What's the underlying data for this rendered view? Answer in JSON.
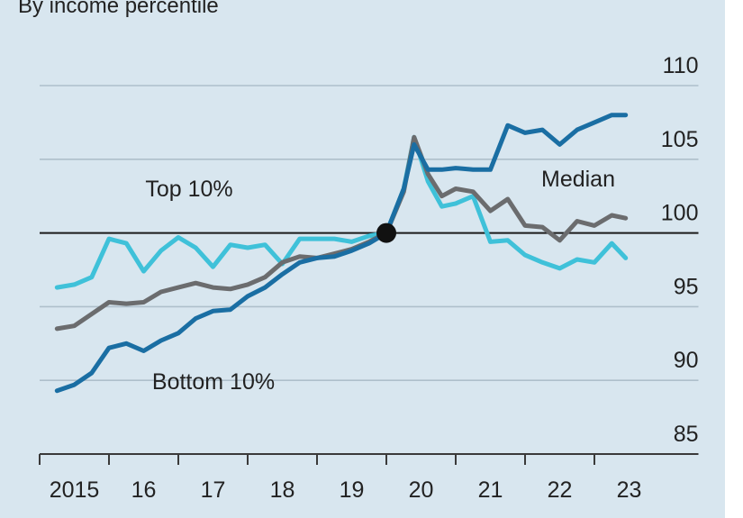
{
  "chart_data": {
    "type": "line",
    "subtitle": "By income percentile",
    "x": [
      2015.25,
      2015.5,
      2015.75,
      2016,
      2016.25,
      2016.5,
      2016.75,
      2017,
      2017.25,
      2017.5,
      2017.75,
      2018,
      2018.25,
      2018.5,
      2018.75,
      2019,
      2019.25,
      2019.5,
      2019.75,
      2020,
      2020.25,
      2020.4,
      2020.6,
      2020.8,
      2021,
      2021.25,
      2021.5,
      2021.75,
      2022,
      2022.25,
      2022.5,
      2022.75,
      2023,
      2023.25,
      2023.45
    ],
    "series": [
      {
        "name": "Top 10%",
        "color": "#3fc1d9",
        "values": [
          96.3,
          96.5,
          97,
          99.6,
          99.3,
          97.4,
          98.8,
          99.7,
          99,
          97.7,
          99.2,
          99,
          99.2,
          97.9,
          99.6,
          99.6,
          99.6,
          99.4,
          99.8,
          100,
          103,
          106.5,
          103.5,
          101.8,
          102,
          102.5,
          99.4,
          99.5,
          98.5,
          98,
          97.6,
          98.2,
          98,
          99.3,
          98.3
        ]
      },
      {
        "name": "Median",
        "color": "#6b6c6e",
        "values": [
          93.5,
          93.7,
          94.5,
          95.3,
          95.2,
          95.3,
          96,
          96.3,
          96.6,
          96.3,
          96.2,
          96.5,
          97,
          98,
          98.4,
          98.3,
          98.6,
          98.9,
          99.4,
          100,
          102.8,
          106.5,
          104,
          102.5,
          103,
          102.8,
          101.5,
          102.3,
          100.5,
          100.4,
          99.5,
          100.8,
          100.5,
          101.2,
          101
        ]
      },
      {
        "name": "Bottom 10%",
        "color": "#1a6ea3",
        "values": [
          89.3,
          89.7,
          90.5,
          92.2,
          92.5,
          92,
          92.7,
          93.2,
          94.2,
          94.7,
          94.8,
          95.7,
          96.3,
          97.2,
          98,
          98.3,
          98.4,
          98.8,
          99.3,
          100,
          103,
          106,
          104.3,
          104.3,
          104.4,
          104.3,
          104.3,
          107.3,
          106.8,
          107,
          106,
          107,
          107.5,
          108,
          108
        ]
      }
    ],
    "xlim": [
      2015,
      2024.5
    ],
    "xticks": [
      {
        "value": 2015,
        "label": "2015"
      },
      {
        "value": 2016,
        "label": "16"
      },
      {
        "value": 2017,
        "label": "17"
      },
      {
        "value": 2018,
        "label": "18"
      },
      {
        "value": 2019,
        "label": "19"
      },
      {
        "value": 2020,
        "label": "20"
      },
      {
        "value": 2021,
        "label": "21"
      },
      {
        "value": 2022,
        "label": "22"
      },
      {
        "value": 2023,
        "label": "23"
      }
    ],
    "ylim": [
      85,
      110
    ],
    "yticks": [
      85,
      90,
      95,
      100,
      105,
      110
    ],
    "grid": true,
    "reference_line": 100
  }
}
